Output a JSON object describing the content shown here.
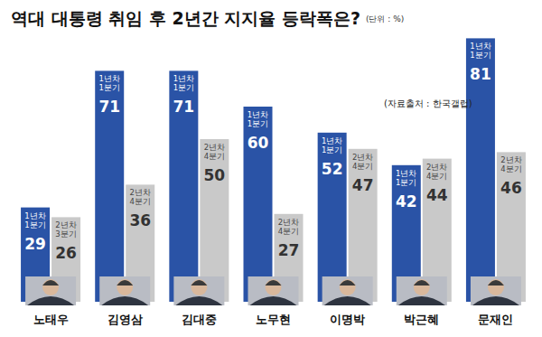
{
  "chart_data": {
    "type": "bar",
    "title": "역대 대통령 취임 후 2년간 지지율 등락폭은?",
    "subtitle": "(단위 : %)",
    "source": "(자료출처 : 한국갤럽)",
    "categories": [
      "노태우",
      "김영삼",
      "김대중",
      "노무현",
      "이명박",
      "박근혜",
      "문재인"
    ],
    "series": [
      {
        "color": "#2a53a6",
        "values": [
          29,
          71,
          71,
          60,
          52,
          42,
          81
        ],
        "period_labels": [
          "1년차 1분기",
          "1년차 1분기",
          "1년차 1분기",
          "1년차 1분기",
          "1년차 1분기",
          "1년차 1분기",
          "1년차 1분기"
        ]
      },
      {
        "color": "#c9c9c9",
        "values": [
          26,
          36,
          50,
          27,
          47,
          44,
          46
        ],
        "period_labels": [
          "2년차 3분기",
          "2년차 4분기",
          "2년차 4분기",
          "2년차 4분기",
          "2년차 4분기",
          "2년차 4분기",
          "2년차 4분기"
        ]
      }
    ],
    "ylim": [
      0,
      85
    ],
    "yticks": [],
    "grid": false,
    "data_labels": true,
    "tick_labels": "x"
  }
}
